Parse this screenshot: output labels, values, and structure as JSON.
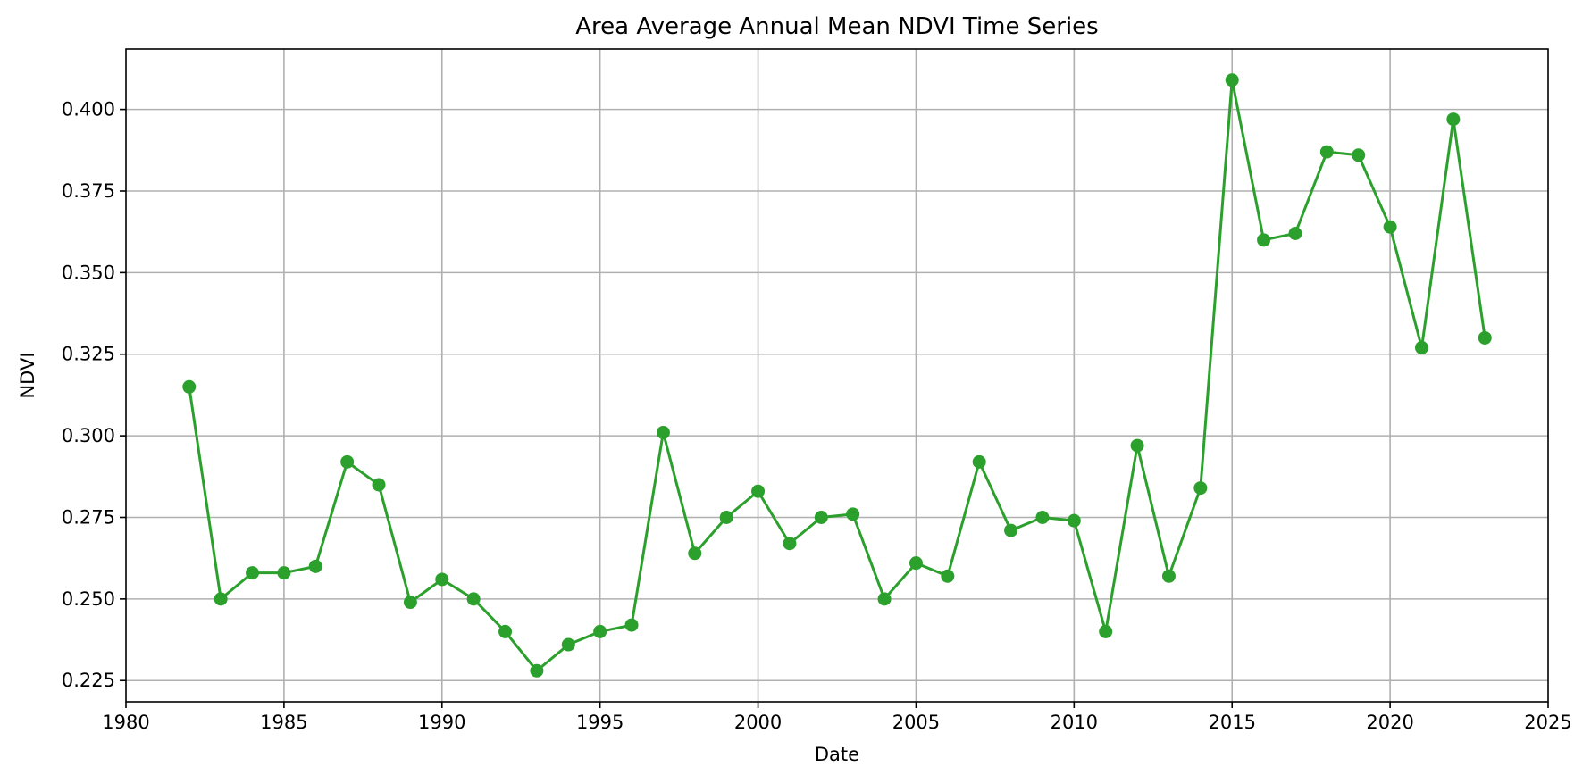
{
  "chart_data": {
    "type": "line",
    "title": "Area Average Annual Mean NDVI Time Series",
    "xlabel": "Date",
    "ylabel": "NDVI",
    "xlim": [
      1980,
      2025
    ],
    "ylim": [
      0.2185,
      0.4185
    ],
    "x_ticks": [
      "1980",
      "1985",
      "1990",
      "1995",
      "2000",
      "2005",
      "2010",
      "2015",
      "2020",
      "2025"
    ],
    "y_ticks": [
      "0.225",
      "0.250",
      "0.275",
      "0.300",
      "0.325",
      "0.350",
      "0.375",
      "0.400"
    ],
    "grid": true,
    "color": "#2ca02c",
    "marker": "circle",
    "series": [
      {
        "x": [
          1982,
          1983,
          1984,
          1985,
          1986,
          1987,
          1988,
          1989,
          1990,
          1991,
          1992,
          1993,
          1994,
          1995,
          1996,
          1997,
          1998,
          1999,
          2000,
          2001,
          2002,
          2003,
          2004,
          2005,
          2006,
          2007,
          2008,
          2009,
          2010,
          2011,
          2012,
          2013,
          2014,
          2015,
          2016,
          2017,
          2018,
          2019,
          2020,
          2021,
          2022,
          2023
        ],
        "values": [
          0.315,
          0.25,
          0.258,
          0.258,
          0.26,
          0.292,
          0.285,
          0.249,
          0.256,
          0.25,
          0.24,
          0.228,
          0.236,
          0.24,
          0.242,
          0.301,
          0.264,
          0.275,
          0.283,
          0.267,
          0.275,
          0.276,
          0.25,
          0.261,
          0.257,
          0.292,
          0.271,
          0.275,
          0.274,
          0.24,
          0.297,
          0.257,
          0.284,
          0.409,
          0.36,
          0.362,
          0.387,
          0.386,
          0.364,
          0.327,
          0.397,
          0.33
        ]
      }
    ]
  }
}
